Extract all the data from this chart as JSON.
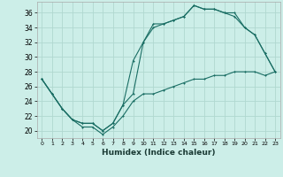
{
  "xlabel": "Humidex (Indice chaleur)",
  "bg_color": "#cceee8",
  "line_color": "#1a6e64",
  "grid_color": "#b0d8d0",
  "xlim": [
    -0.5,
    23.5
  ],
  "ylim": [
    19.0,
    37.5
  ],
  "xticks": [
    0,
    1,
    2,
    3,
    4,
    5,
    6,
    7,
    8,
    9,
    10,
    11,
    12,
    13,
    14,
    15,
    16,
    17,
    18,
    19,
    20,
    21,
    22,
    23
  ],
  "yticks": [
    20,
    22,
    24,
    26,
    28,
    30,
    32,
    34,
    36
  ],
  "line1_x": [
    0,
    1,
    2,
    3,
    4,
    5,
    6,
    7,
    8,
    9,
    10,
    11,
    12,
    13,
    14,
    15,
    16,
    17,
    18,
    19,
    20,
    21,
    22,
    23
  ],
  "line1_y": [
    27.0,
    25.0,
    23.0,
    21.5,
    21.0,
    21.0,
    20.0,
    21.0,
    23.5,
    29.5,
    32.0,
    34.5,
    34.5,
    35.0,
    35.5,
    37.0,
    36.5,
    36.5,
    36.0,
    36.0,
    34.0,
    33.0,
    30.5,
    28.0
  ],
  "line2_x": [
    0,
    1,
    2,
    3,
    4,
    5,
    6,
    7,
    8,
    9,
    10,
    11,
    12,
    13,
    14,
    15,
    16,
    17,
    18,
    19,
    20,
    21,
    22,
    23
  ],
  "line2_y": [
    27.0,
    25.0,
    23.0,
    21.5,
    21.0,
    21.0,
    20.0,
    21.0,
    23.5,
    25.0,
    32.0,
    34.0,
    34.5,
    35.0,
    35.5,
    37.0,
    36.5,
    36.5,
    36.0,
    35.5,
    34.0,
    33.0,
    30.5,
    28.0
  ],
  "line3_x": [
    0,
    1,
    2,
    3,
    4,
    5,
    6,
    7,
    8,
    9,
    10,
    11,
    12,
    13,
    14,
    15,
    16,
    17,
    18,
    19,
    20,
    21,
    22,
    23
  ],
  "line3_y": [
    27.0,
    25.0,
    23.0,
    21.5,
    20.5,
    20.5,
    19.5,
    20.5,
    22.0,
    24.0,
    25.0,
    25.0,
    25.5,
    26.0,
    26.5,
    27.0,
    27.0,
    27.5,
    27.5,
    28.0,
    28.0,
    28.0,
    27.5,
    28.0
  ]
}
